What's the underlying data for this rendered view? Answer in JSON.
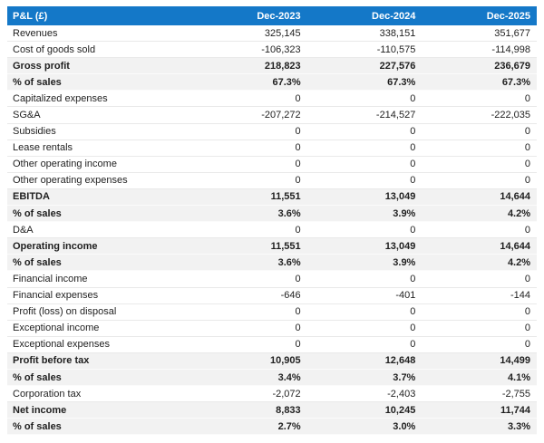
{
  "chart_data": {
    "type": "table",
    "title": "P&L (£)",
    "columns": [
      "Dec-2023",
      "Dec-2024",
      "Dec-2025"
    ],
    "rows": [
      {
        "label": "Revenues",
        "values": [
          325145,
          338151,
          351677
        ]
      },
      {
        "label": "Cost of goods sold",
        "values": [
          -106323,
          -110575,
          -114998
        ]
      },
      {
        "label": "Gross profit",
        "values": [
          218823,
          227576,
          236679
        ]
      },
      {
        "label": "% of sales",
        "values": [
          "67.3%",
          "67.3%",
          "67.3%"
        ]
      },
      {
        "label": "Capitalized expenses",
        "values": [
          0,
          0,
          0
        ]
      },
      {
        "label": "SG&A",
        "values": [
          -207272,
          -214527,
          -222035
        ]
      },
      {
        "label": "Subsidies",
        "values": [
          0,
          0,
          0
        ]
      },
      {
        "label": "Lease rentals",
        "values": [
          0,
          0,
          0
        ]
      },
      {
        "label": "Other operating income",
        "values": [
          0,
          0,
          0
        ]
      },
      {
        "label": "Other operating expenses",
        "values": [
          0,
          0,
          0
        ]
      },
      {
        "label": "EBITDA",
        "values": [
          11551,
          13049,
          14644
        ]
      },
      {
        "label": "% of sales",
        "values": [
          "3.6%",
          "3.9%",
          "4.2%"
        ]
      },
      {
        "label": "D&A",
        "values": [
          0,
          0,
          0
        ]
      },
      {
        "label": "Operating income",
        "values": [
          11551,
          13049,
          14644
        ]
      },
      {
        "label": "% of sales",
        "values": [
          "3.6%",
          "3.9%",
          "4.2%"
        ]
      },
      {
        "label": "Financial income",
        "values": [
          0,
          0,
          0
        ]
      },
      {
        "label": "Financial expenses",
        "values": [
          -646,
          -401,
          -144
        ]
      },
      {
        "label": "Profit (loss) on disposal",
        "values": [
          0,
          0,
          0
        ]
      },
      {
        "label": "Exceptional income",
        "values": [
          0,
          0,
          0
        ]
      },
      {
        "label": "Exceptional expenses",
        "values": [
          0,
          0,
          0
        ]
      },
      {
        "label": "Profit before tax",
        "values": [
          10905,
          12648,
          14499
        ]
      },
      {
        "label": "% of sales",
        "values": [
          "3.4%",
          "3.7%",
          "4.1%"
        ]
      },
      {
        "label": "Corporation tax",
        "values": [
          -2072,
          -2403,
          -2755
        ]
      },
      {
        "label": "Net income",
        "values": [
          8833,
          10245,
          11744
        ]
      },
      {
        "label": "% of sales",
        "values": [
          "2.7%",
          "3.0%",
          "3.3%"
        ]
      }
    ]
  },
  "table": {
    "header": {
      "label": "P&L (£)",
      "columns": [
        "Dec-2023",
        "Dec-2024",
        "Dec-2025"
      ]
    },
    "rows": [
      {
        "label": "Revenues",
        "values": [
          "325,145",
          "338,151",
          "351,677"
        ],
        "style": "normal"
      },
      {
        "label": "Cost of goods sold",
        "values": [
          "-106,323",
          "-110,575",
          "-114,998"
        ],
        "style": "normal"
      },
      {
        "label": "Gross profit",
        "values": [
          "218,823",
          "227,576",
          "236,679"
        ],
        "style": "subtotal"
      },
      {
        "label": "% of sales",
        "values": [
          "67.3%",
          "67.3%",
          "67.3%"
        ],
        "style": "subtotal"
      },
      {
        "label": "Capitalized expenses",
        "values": [
          "0",
          "0",
          "0"
        ],
        "style": "normal"
      },
      {
        "label": "SG&A",
        "values": [
          "-207,272",
          "-214,527",
          "-222,035"
        ],
        "style": "normal"
      },
      {
        "label": "Subsidies",
        "values": [
          "0",
          "0",
          "0"
        ],
        "style": "normal"
      },
      {
        "label": "Lease rentals",
        "values": [
          "0",
          "0",
          "0"
        ],
        "style": "normal"
      },
      {
        "label": "Other operating income",
        "values": [
          "0",
          "0",
          "0"
        ],
        "style": "normal"
      },
      {
        "label": "Other operating expenses",
        "values": [
          "0",
          "0",
          "0"
        ],
        "style": "normal"
      },
      {
        "label": "EBITDA",
        "values": [
          "11,551",
          "13,049",
          "14,644"
        ],
        "style": "subtotal"
      },
      {
        "label": "% of sales",
        "values": [
          "3.6%",
          "3.9%",
          "4.2%"
        ],
        "style": "subtotal"
      },
      {
        "label": "D&A",
        "values": [
          "0",
          "0",
          "0"
        ],
        "style": "normal"
      },
      {
        "label": "Operating income",
        "values": [
          "11,551",
          "13,049",
          "14,644"
        ],
        "style": "subtotal"
      },
      {
        "label": "% of sales",
        "values": [
          "3.6%",
          "3.9%",
          "4.2%"
        ],
        "style": "subtotal"
      },
      {
        "label": "Financial income",
        "values": [
          "0",
          "0",
          "0"
        ],
        "style": "normal"
      },
      {
        "label": "Financial expenses",
        "values": [
          "-646",
          "-401",
          "-144"
        ],
        "style": "normal"
      },
      {
        "label": "Profit (loss) on disposal",
        "values": [
          "0",
          "0",
          "0"
        ],
        "style": "normal"
      },
      {
        "label": "Exceptional income",
        "values": [
          "0",
          "0",
          "0"
        ],
        "style": "normal"
      },
      {
        "label": "Exceptional expenses",
        "values": [
          "0",
          "0",
          "0"
        ],
        "style": "normal"
      },
      {
        "label": "Profit before tax",
        "values": [
          "10,905",
          "12,648",
          "14,499"
        ],
        "style": "subtotal"
      },
      {
        "label": "% of sales",
        "values": [
          "3.4%",
          "3.7%",
          "4.1%"
        ],
        "style": "subtotal"
      },
      {
        "label": "Corporation tax",
        "values": [
          "-2,072",
          "-2,403",
          "-2,755"
        ],
        "style": "normal"
      },
      {
        "label": "Net income",
        "values": [
          "8,833",
          "10,245",
          "11,744"
        ],
        "style": "subtotal"
      },
      {
        "label": "% of sales",
        "values": [
          "2.7%",
          "3.0%",
          "3.3%"
        ],
        "style": "subtotal"
      }
    ],
    "colors": {
      "header_bg": "#1478c8",
      "header_text": "#ffffff",
      "stripe_bg": "#f2f2f2",
      "row_border": "#e9e9e9",
      "text": "#1f1f1f"
    }
  }
}
